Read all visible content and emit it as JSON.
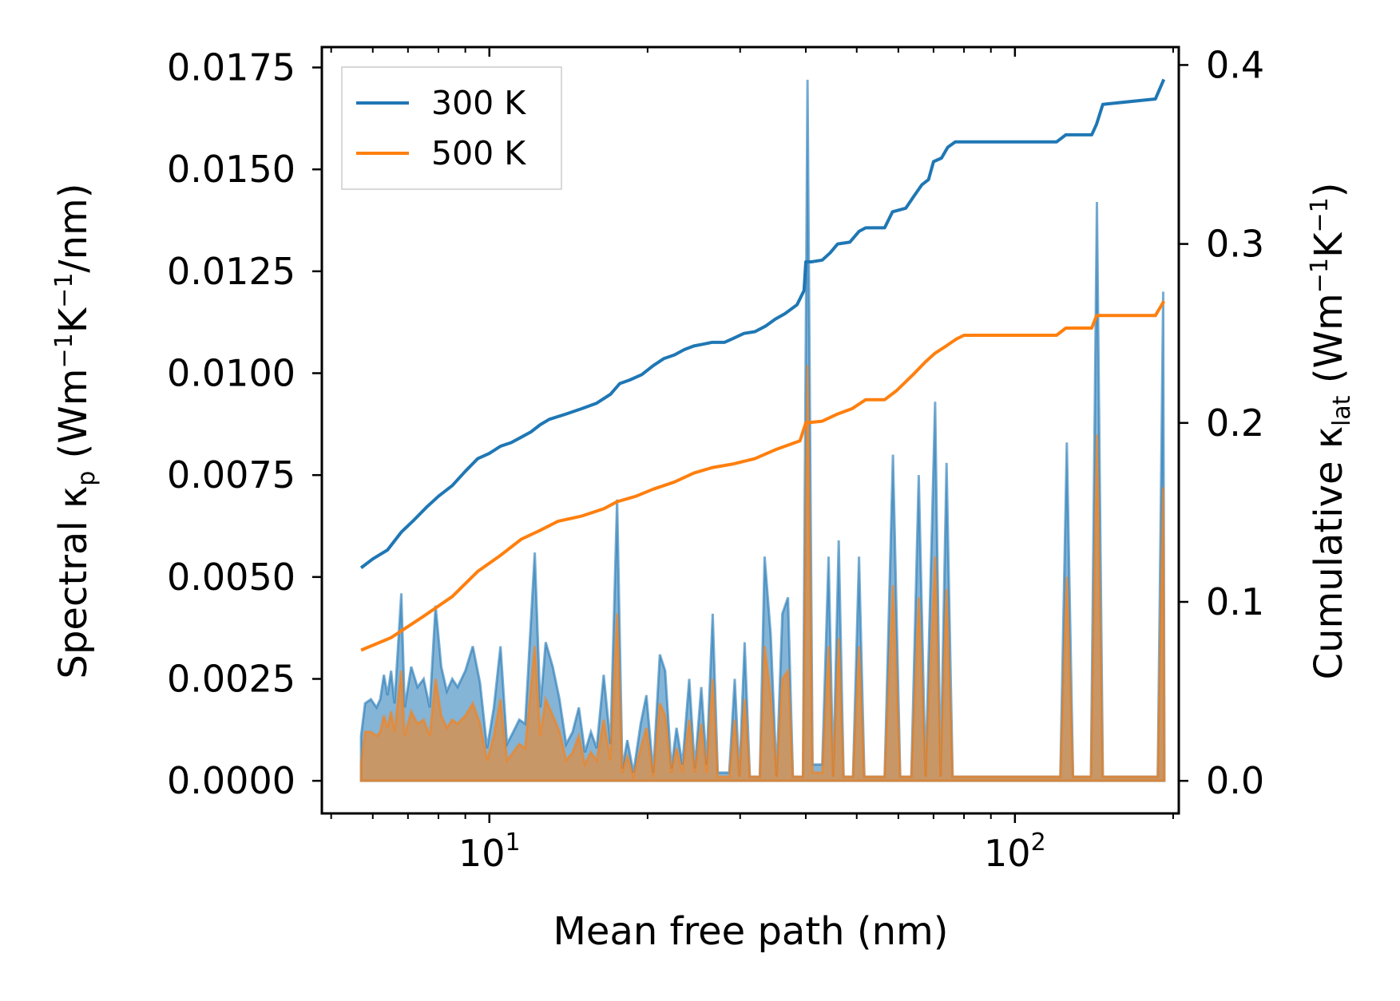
{
  "chart_data": {
    "type": "line",
    "title": "",
    "xlabel": "Mean free path (nm)",
    "ylabel_left": {
      "text": "Spectral κ",
      "sub": "p",
      "units_prefix": " (Wm",
      "sup1": "−1",
      "mid": "K",
      "sup2": "−1",
      "suffix": "/nm)"
    },
    "ylabel_right": {
      "text": "Cumulative κ",
      "sub": "lat",
      "units_prefix": " (Wm",
      "sup1": "−1",
      "mid": "K",
      "sup2": "−1",
      "suffix": ")"
    },
    "xscale": "log",
    "xlim": [
      4.8,
      205
    ],
    "ylim_left": [
      -0.0008,
      0.018
    ],
    "ylim_right": [
      -0.0182,
      0.41
    ],
    "x_ticks": [
      {
        "value": 10,
        "base": "10",
        "exp": "1"
      },
      {
        "value": 100,
        "base": "10",
        "exp": "2"
      }
    ],
    "y_ticks_left": [
      "0.0000",
      "0.0025",
      "0.0050",
      "0.0075",
      "0.0100",
      "0.0125",
      "0.0150",
      "0.0175"
    ],
    "y_ticks_right": [
      "0.0",
      "0.1",
      "0.2",
      "0.3",
      "0.4"
    ],
    "legend": {
      "position": "top-left",
      "entries": [
        "300 K",
        "500 K"
      ]
    },
    "colors": {
      "300K": "#1f77b4",
      "500K": "#ff7f0e",
      "fill_300K": "#1f77b4",
      "fill_500K": "#ff7f0e"
    },
    "spectral_300K": [
      [
        5.7,
        0.0011
      ],
      [
        5.8,
        0.0019
      ],
      [
        5.95,
        0.002
      ],
      [
        6.1,
        0.0018
      ],
      [
        6.2,
        0.002
      ],
      [
        6.3,
        0.0026
      ],
      [
        6.4,
        0.0021
      ],
      [
        6.5,
        0.0027
      ],
      [
        6.6,
        0.0019
      ],
      [
        6.8,
        0.0046
      ],
      [
        6.9,
        0.0018
      ],
      [
        7.1,
        0.0028
      ],
      [
        7.3,
        0.0023
      ],
      [
        7.5,
        0.0025
      ],
      [
        7.7,
        0.0018
      ],
      [
        7.9,
        0.0043
      ],
      [
        8.1,
        0.0028
      ],
      [
        8.3,
        0.0022
      ],
      [
        8.5,
        0.0025
      ],
      [
        8.7,
        0.0023
      ],
      [
        9.0,
        0.0027
      ],
      [
        9.3,
        0.0033
      ],
      [
        9.6,
        0.0024
      ],
      [
        9.9,
        0.0008
      ],
      [
        10.2,
        0.0018
      ],
      [
        10.5,
        0.0033
      ],
      [
        10.8,
        0.0009
      ],
      [
        11.1,
        0.0012
      ],
      [
        11.4,
        0.0015
      ],
      [
        11.7,
        0.0014
      ],
      [
        12.2,
        0.0056
      ],
      [
        12.5,
        0.0018
      ],
      [
        12.8,
        0.0034
      ],
      [
        13.2,
        0.0028
      ],
      [
        13.6,
        0.002
      ],
      [
        14.0,
        0.0009
      ],
      [
        14.4,
        0.0012
      ],
      [
        14.8,
        0.0018
      ],
      [
        15.2,
        0.0007
      ],
      [
        15.6,
        0.0012
      ],
      [
        16.0,
        0.0008
      ],
      [
        16.5,
        0.0026
      ],
      [
        17.0,
        0.0009
      ],
      [
        17.5,
        0.0069
      ],
      [
        17.9,
        0.0003
      ],
      [
        18.3,
        0.001
      ],
      [
        18.8,
        0.0002
      ],
      [
        19.4,
        0.0014
      ],
      [
        19.9,
        0.0021
      ],
      [
        20.5,
        0.0002
      ],
      [
        21.1,
        0.0031
      ],
      [
        21.6,
        0.0027
      ],
      [
        22.2,
        0.0003
      ],
      [
        22.7,
        0.0013
      ],
      [
        23.3,
        0.0004
      ],
      [
        24.0,
        0.0025
      ],
      [
        24.6,
        0.0003
      ],
      [
        25.3,
        0.0023
      ],
      [
        25.9,
        0.0004
      ],
      [
        26.6,
        0.0041
      ],
      [
        27.2,
        0.0002
      ],
      [
        28.6,
        0.0002
      ],
      [
        29.3,
        0.0025
      ],
      [
        29.9,
        0.0001
      ],
      [
        30.6,
        0.0034
      ],
      [
        31.3,
        0.0001
      ],
      [
        32.7,
        0.0001
      ],
      [
        33.4,
        0.0055
      ],
      [
        34.3,
        0.0036
      ],
      [
        35.2,
        0.0001
      ],
      [
        36.1,
        0.0041
      ],
      [
        37.0,
        0.0045
      ],
      [
        37.8,
        0.0001
      ],
      [
        39.5,
        0.0001
      ],
      [
        40.3,
        0.0172
      ],
      [
        41.2,
        0.0004
      ],
      [
        43.0,
        0.0004
      ],
      [
        44.2,
        0.0055
      ],
      [
        45.1,
        0.0001
      ],
      [
        46.2,
        0.0059
      ],
      [
        47.2,
        0.0001
      ],
      [
        49.2,
        0.0001
      ],
      [
        50.5,
        0.0055
      ],
      [
        51.7,
        0.0001
      ],
      [
        56.5,
        0.0001
      ],
      [
        58.6,
        0.008
      ],
      [
        60.5,
        0.0001
      ],
      [
        63.5,
        0.0001
      ],
      [
        65.6,
        0.0075
      ],
      [
        67.6,
        0.0001
      ],
      [
        70.5,
        0.0093
      ],
      [
        72.2,
        0.0001
      ],
      [
        74.1,
        0.0078
      ],
      [
        76.1,
        0.0001
      ],
      [
        77.7,
        0.0001
      ],
      [
        81.1,
        0.0001
      ],
      [
        122.0,
        0.0001
      ],
      [
        125.5,
        0.0083
      ],
      [
        129.0,
        0.0001
      ],
      [
        139.5,
        0.0001
      ],
      [
        143.2,
        0.0142
      ],
      [
        147.0,
        0.0001
      ],
      [
        187.0,
        0.0001
      ],
      [
        191.5,
        0.012
      ],
      [
        192.5,
        0.0001
      ]
    ],
    "spectral_500K": [
      [
        5.7,
        0.0004
      ],
      [
        5.8,
        0.0012
      ],
      [
        5.95,
        0.0012
      ],
      [
        6.1,
        0.0011
      ],
      [
        6.2,
        0.0012
      ],
      [
        6.3,
        0.0016
      ],
      [
        6.4,
        0.0013
      ],
      [
        6.5,
        0.0017
      ],
      [
        6.6,
        0.0012
      ],
      [
        6.8,
        0.0027
      ],
      [
        6.9,
        0.0011
      ],
      [
        7.1,
        0.0017
      ],
      [
        7.3,
        0.0014
      ],
      [
        7.5,
        0.0015
      ],
      [
        7.7,
        0.0011
      ],
      [
        7.9,
        0.0025
      ],
      [
        8.1,
        0.0016
      ],
      [
        8.3,
        0.0013
      ],
      [
        8.5,
        0.0015
      ],
      [
        8.7,
        0.0014
      ],
      [
        9.0,
        0.0016
      ],
      [
        9.3,
        0.0019
      ],
      [
        9.6,
        0.0014
      ],
      [
        9.9,
        0.0005
      ],
      [
        10.2,
        0.0011
      ],
      [
        10.5,
        0.002
      ],
      [
        10.8,
        0.0005
      ],
      [
        11.1,
        0.0007
      ],
      [
        11.4,
        0.0009
      ],
      [
        11.7,
        0.0008
      ],
      [
        12.2,
        0.0033
      ],
      [
        12.5,
        0.0011
      ],
      [
        12.8,
        0.002
      ],
      [
        13.2,
        0.0016
      ],
      [
        13.6,
        0.0012
      ],
      [
        14.0,
        0.0005
      ],
      [
        14.4,
        0.0007
      ],
      [
        14.8,
        0.0011
      ],
      [
        15.2,
        0.0004
      ],
      [
        15.6,
        0.0007
      ],
      [
        16.0,
        0.0005
      ],
      [
        16.5,
        0.0015
      ],
      [
        17.0,
        0.0005
      ],
      [
        17.5,
        0.0041
      ],
      [
        17.9,
        0.0002
      ],
      [
        18.3,
        0.0006
      ],
      [
        18.8,
        0.0001
      ],
      [
        19.4,
        0.0008
      ],
      [
        19.9,
        0.0013
      ],
      [
        20.5,
        0.0001
      ],
      [
        21.1,
        0.0019
      ],
      [
        21.6,
        0.0016
      ],
      [
        22.2,
        0.0002
      ],
      [
        22.7,
        0.0008
      ],
      [
        23.3,
        0.0002
      ],
      [
        24.0,
        0.0015
      ],
      [
        24.6,
        0.0002
      ],
      [
        25.3,
        0.0014
      ],
      [
        25.9,
        0.0002
      ],
      [
        26.6,
        0.0025
      ],
      [
        27.2,
        0.0001
      ],
      [
        28.6,
        0.0001
      ],
      [
        29.3,
        0.0015
      ],
      [
        29.9,
        0.0001
      ],
      [
        30.6,
        0.002
      ],
      [
        31.3,
        0.0001
      ],
      [
        32.7,
        0.0001
      ],
      [
        33.4,
        0.0033
      ],
      [
        34.3,
        0.0021
      ],
      [
        35.2,
        0.0001
      ],
      [
        36.1,
        0.0025
      ],
      [
        37.0,
        0.0027
      ],
      [
        37.8,
        0.0001
      ],
      [
        39.5,
        0.0001
      ],
      [
        40.3,
        0.0102
      ],
      [
        41.2,
        0.0002
      ],
      [
        43.0,
        0.0002
      ],
      [
        44.2,
        0.0033
      ],
      [
        45.1,
        0.0001
      ],
      [
        46.2,
        0.0035
      ],
      [
        47.2,
        0.0001
      ],
      [
        49.2,
        0.0001
      ],
      [
        50.5,
        0.0033
      ],
      [
        51.7,
        0.0001
      ],
      [
        56.5,
        0.0001
      ],
      [
        58.6,
        0.0048
      ],
      [
        60.5,
        0.0001
      ],
      [
        63.5,
        0.0001
      ],
      [
        65.6,
        0.0045
      ],
      [
        67.6,
        0.0001
      ],
      [
        70.5,
        0.0055
      ],
      [
        72.2,
        0.0001
      ],
      [
        74.1,
        0.0047
      ],
      [
        76.1,
        0.0001
      ],
      [
        77.7,
        0.0001
      ],
      [
        81.1,
        0.0001
      ],
      [
        122.0,
        0.0001
      ],
      [
        125.5,
        0.005
      ],
      [
        129.0,
        0.0001
      ],
      [
        139.5,
        0.0001
      ],
      [
        143.2,
        0.0085
      ],
      [
        147.0,
        0.0001
      ],
      [
        187.0,
        0.0001
      ],
      [
        191.5,
        0.0072
      ],
      [
        192.5,
        0.0001
      ]
    ],
    "cumulative_300K": [
      [
        5.7,
        0.119
      ],
      [
        6.0,
        0.124
      ],
      [
        6.4,
        0.129
      ],
      [
        6.8,
        0.139
      ],
      [
        7.2,
        0.146
      ],
      [
        7.6,
        0.153
      ],
      [
        8.0,
        0.159
      ],
      [
        8.5,
        0.165
      ],
      [
        9.0,
        0.173
      ],
      [
        9.5,
        0.18
      ],
      [
        10.0,
        0.183
      ],
      [
        10.5,
        0.187
      ],
      [
        11.0,
        0.189
      ],
      [
        11.5,
        0.192
      ],
      [
        12.0,
        0.195
      ],
      [
        12.5,
        0.199
      ],
      [
        13.0,
        0.202
      ],
      [
        14.0,
        0.205
      ],
      [
        15.0,
        0.208
      ],
      [
        16.0,
        0.211
      ],
      [
        17.0,
        0.216
      ],
      [
        17.7,
        0.222
      ],
      [
        18.5,
        0.224
      ],
      [
        19.5,
        0.227
      ],
      [
        20.5,
        0.232
      ],
      [
        21.5,
        0.236
      ],
      [
        22.5,
        0.238
      ],
      [
        23.5,
        0.241
      ],
      [
        24.5,
        0.243
      ],
      [
        25.5,
        0.244
      ],
      [
        26.5,
        0.245
      ],
      [
        28.0,
        0.245
      ],
      [
        29.0,
        0.247
      ],
      [
        30.5,
        0.25
      ],
      [
        32.0,
        0.251
      ],
      [
        33.5,
        0.254
      ],
      [
        35.0,
        0.258
      ],
      [
        36.5,
        0.261
      ],
      [
        38.5,
        0.266
      ],
      [
        39.7,
        0.274
      ],
      [
        40.0,
        0.29
      ],
      [
        41.0,
        0.29
      ],
      [
        43.0,
        0.291
      ],
      [
        44.5,
        0.295
      ],
      [
        46.0,
        0.3
      ],
      [
        48.5,
        0.301
      ],
      [
        50.5,
        0.307
      ],
      [
        52.0,
        0.309
      ],
      [
        56.5,
        0.309
      ],
      [
        58.5,
        0.318
      ],
      [
        62.0,
        0.32
      ],
      [
        64.0,
        0.326
      ],
      [
        66.5,
        0.333
      ],
      [
        68.5,
        0.336
      ],
      [
        70.0,
        0.346
      ],
      [
        72.5,
        0.348
      ],
      [
        74.5,
        0.354
      ],
      [
        77.0,
        0.357
      ],
      [
        80.0,
        0.357
      ],
      [
        120.0,
        0.357
      ],
      [
        125.0,
        0.361
      ],
      [
        140.0,
        0.361
      ],
      [
        143.0,
        0.367
      ],
      [
        147.0,
        0.378
      ],
      [
        185.0,
        0.381
      ],
      [
        192.0,
        0.392
      ]
    ],
    "cumulative_500K": [
      [
        5.7,
        0.073
      ],
      [
        6.5,
        0.08
      ],
      [
        7.5,
        0.092
      ],
      [
        8.5,
        0.103
      ],
      [
        9.5,
        0.117
      ],
      [
        10.5,
        0.126
      ],
      [
        11.5,
        0.135
      ],
      [
        12.5,
        0.14
      ],
      [
        13.5,
        0.145
      ],
      [
        15.0,
        0.148
      ],
      [
        16.5,
        0.152
      ],
      [
        17.5,
        0.156
      ],
      [
        19.0,
        0.159
      ],
      [
        20.5,
        0.163
      ],
      [
        22.5,
        0.167
      ],
      [
        24.5,
        0.172
      ],
      [
        26.5,
        0.175
      ],
      [
        29.0,
        0.177
      ],
      [
        32.0,
        0.18
      ],
      [
        35.0,
        0.185
      ],
      [
        39.0,
        0.19
      ],
      [
        40.0,
        0.2
      ],
      [
        43.0,
        0.201
      ],
      [
        46.0,
        0.205
      ],
      [
        49.0,
        0.208
      ],
      [
        52.0,
        0.213
      ],
      [
        56.5,
        0.213
      ],
      [
        59.5,
        0.218
      ],
      [
        64.0,
        0.227
      ],
      [
        67.5,
        0.234
      ],
      [
        70.5,
        0.239
      ],
      [
        74.0,
        0.243
      ],
      [
        77.5,
        0.247
      ],
      [
        80.0,
        0.249
      ],
      [
        120.0,
        0.249
      ],
      [
        125.0,
        0.253
      ],
      [
        140.0,
        0.253
      ],
      [
        143.0,
        0.26
      ],
      [
        185.0,
        0.26
      ],
      [
        192.0,
        0.268
      ]
    ]
  }
}
